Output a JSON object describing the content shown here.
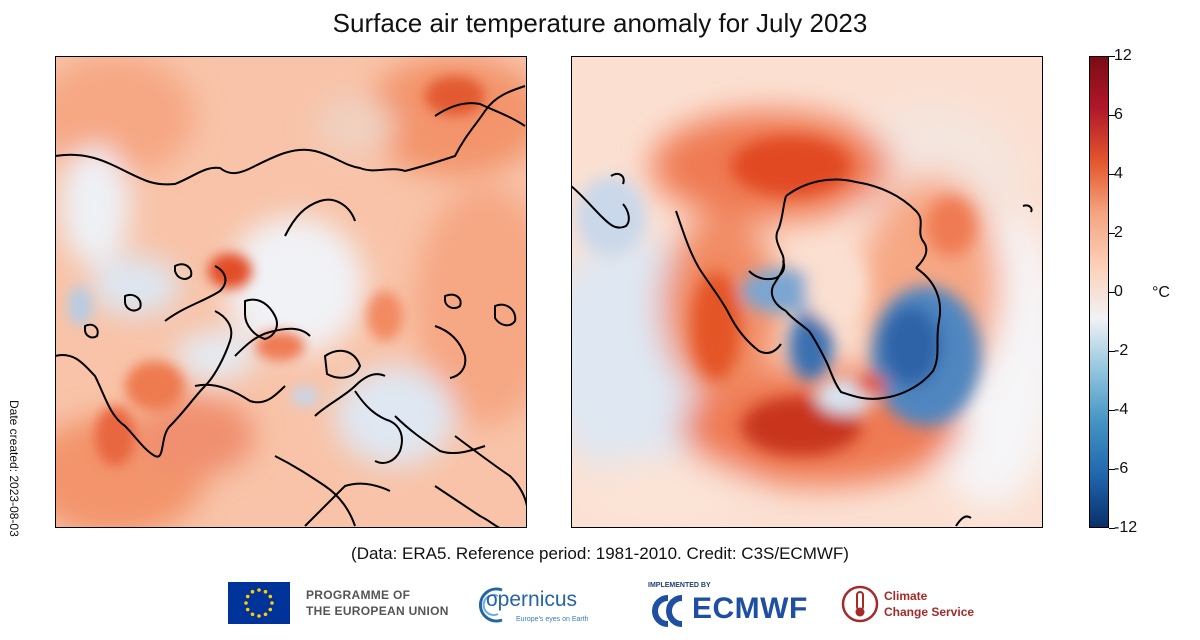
{
  "title": "Surface air temperature anomaly for July 2023",
  "date_created": "Date created: 2023-08-03",
  "credit": "(Data: ERA5.  Reference period: 1981-2010.  Credit: C3S/ECMWF)",
  "maps": [
    {
      "name": "north-polar-map",
      "region": "Northern Hemisphere polar projection"
    },
    {
      "name": "south-polar-map",
      "region": "Southern Hemisphere polar projection"
    }
  ],
  "colorbar": {
    "unit": "°C",
    "ticks": [
      "12",
      "6",
      "4",
      "2",
      "0",
      "-2",
      "-4",
      "-6",
      "-12"
    ],
    "colors": [
      "#08306b",
      "#2166ac",
      "#4393c3",
      "#92c5de",
      "#f2f2f5",
      "#fdd0b8",
      "#f4a582",
      "#e4562c",
      "#b2182b",
      "#7a0c14"
    ]
  },
  "logos": {
    "eu_line1": "PROGRAMME OF",
    "eu_line2": "THE EUROPEAN UNION",
    "copernicus": "opernicus",
    "copernicus_tagline": "Europe's eyes on Earth",
    "implemented_by": "IMPLEMENTED BY",
    "ecmwf": "ECMWF",
    "c3s_line1": "Climate",
    "c3s_line2": "Change Service"
  }
}
